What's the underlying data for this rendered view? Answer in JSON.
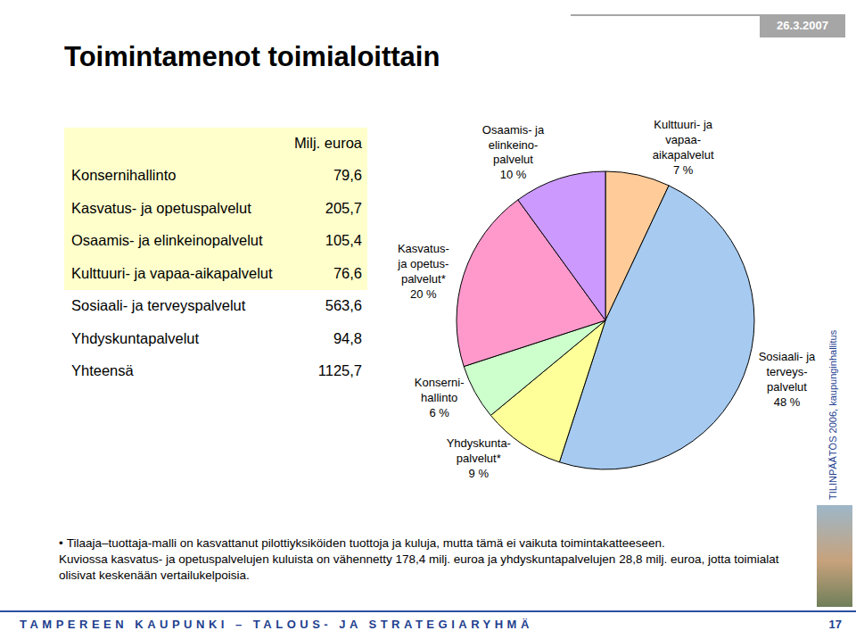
{
  "chart_data": {
    "type": "pie",
    "labels": [
      "Kulttuuri- ja\nvapaa-\naikapalvelut",
      "Sosiaali- ja\nterveys-\npalvelut",
      "Yhdyskunta-\npalvelut*",
      "Konserni-\nhallinto",
      "Kasvatus-\nja opetus-\npalvelut*",
      "Osaamis- ja\nelinkeino-\npalvelut"
    ],
    "values": [
      7,
      48,
      9,
      6,
      20,
      10
    ],
    "value_labels": [
      "7 %",
      "48 %",
      "9 %",
      "6 %",
      "20 %",
      "10 %"
    ],
    "colors": [
      "#ffcc99",
      "#a6caf0",
      "#ffff99",
      "#ccffcc",
      "#ff99cc",
      "#cc99ff"
    ],
    "data_labels": true
  },
  "slide": {
    "title": "Toimintamenot toimialoittain",
    "date": "26.3.2007",
    "table": {
      "header": "Milj. euroa",
      "rows": [
        [
          "Konsernihallinto",
          "79,6"
        ],
        [
          "Kasvatus- ja opetuspalvelut",
          "205,7"
        ],
        [
          "Osaamis- ja elinkeinopalvelut",
          "105,4"
        ],
        [
          "Kulttuuri- ja vapaa-aikapalvelut",
          "76,6"
        ],
        [
          "Sosiaali- ja terveyspalvelut",
          "563,6"
        ],
        [
          "Yhdyskuntapalvelut",
          "94,8"
        ],
        [
          "Yhteensä",
          "1125,7"
        ]
      ]
    },
    "notes": [
      "Tilaaja–tuottaja-malli on kasvattanut pilottiyksiköiden tuottoja ja kuluja, mutta tämä ei vaikuta toimintakatteeseen.",
      "Kuviossa kasvatus- ja opetuspalvelujen kuluista on vähennetty 178,4 milj. euroa ja yhdyskuntapalvelujen 28,8 milj. euroa, jotta toimialat olisivat keskenään vertailukelpoisia."
    ],
    "side_text": "TILINPÄÄTÖS 2006, kaupunginhallitus",
    "footer": "TAMPEREEN KAUPUNKI – TALOUS- JA STRATEGIARYHMÄ",
    "page": "17"
  }
}
